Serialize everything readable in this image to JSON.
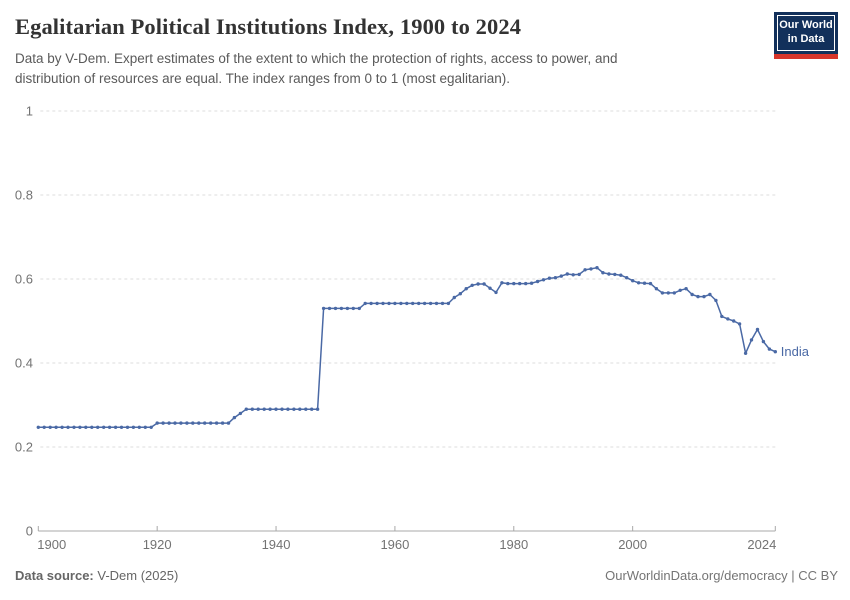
{
  "header": {
    "title": "Egalitarian Political Institutions Index, 1900 to 2024",
    "subtitle_line1": "Data by V-Dem. Expert estimates of the extent to which the protection of rights, access to power, and",
    "subtitle_line2": "distribution of resources are equal. The index ranges from 0 to 1 (most egalitarian)."
  },
  "logo": {
    "line1": "Our World",
    "line2": "in Data",
    "bg_color": "#12305b",
    "accent_color": "#d7352b"
  },
  "chart_data": {
    "type": "line",
    "title": "Egalitarian Political Institutions Index, 1900 to 2024",
    "xlabel": "",
    "ylabel": "",
    "xlim": [
      1900,
      2024
    ],
    "ylim": [
      0,
      1
    ],
    "xticks": [
      1900,
      1920,
      1940,
      1960,
      1980,
      2000,
      2024
    ],
    "yticks": [
      0,
      0.2,
      0.4,
      0.6,
      0.8,
      1
    ],
    "grid": "horizontal-dashed",
    "legend": "end-of-line entity label",
    "colors": {
      "gridline": "#dedede",
      "axis": "#a8a8a8",
      "tick_label": "#737373"
    },
    "series": [
      {
        "name": "India",
        "color": "#4a69a5",
        "years": [
          1900,
          1901,
          1902,
          1903,
          1904,
          1905,
          1906,
          1907,
          1908,
          1909,
          1910,
          1911,
          1912,
          1913,
          1914,
          1915,
          1916,
          1917,
          1918,
          1919,
          1920,
          1921,
          1922,
          1923,
          1924,
          1925,
          1926,
          1927,
          1928,
          1929,
          1930,
          1931,
          1932,
          1933,
          1934,
          1935,
          1936,
          1937,
          1938,
          1939,
          1940,
          1941,
          1942,
          1943,
          1944,
          1945,
          1946,
          1947,
          1948,
          1949,
          1950,
          1951,
          1952,
          1953,
          1954,
          1955,
          1956,
          1957,
          1958,
          1959,
          1960,
          1961,
          1962,
          1963,
          1964,
          1965,
          1966,
          1967,
          1968,
          1969,
          1970,
          1971,
          1972,
          1973,
          1974,
          1975,
          1976,
          1977,
          1978,
          1979,
          1980,
          1981,
          1982,
          1983,
          1984,
          1985,
          1986,
          1987,
          1988,
          1989,
          1990,
          1991,
          1992,
          1993,
          1994,
          1995,
          1996,
          1997,
          1998,
          1999,
          2000,
          2001,
          2002,
          2003,
          2004,
          2005,
          2006,
          2007,
          2008,
          2009,
          2010,
          2011,
          2012,
          2013,
          2014,
          2015,
          2016,
          2017,
          2018,
          2019,
          2020,
          2021,
          2022,
          2023,
          2024
        ],
        "values": [
          0.247,
          0.247,
          0.247,
          0.247,
          0.247,
          0.247,
          0.247,
          0.247,
          0.247,
          0.247,
          0.247,
          0.247,
          0.247,
          0.247,
          0.247,
          0.247,
          0.247,
          0.247,
          0.247,
          0.247,
          0.257,
          0.257,
          0.257,
          0.257,
          0.257,
          0.257,
          0.257,
          0.257,
          0.257,
          0.257,
          0.257,
          0.257,
          0.257,
          0.27,
          0.28,
          0.29,
          0.29,
          0.29,
          0.29,
          0.29,
          0.29,
          0.29,
          0.29,
          0.29,
          0.29,
          0.29,
          0.29,
          0.29,
          0.53,
          0.53,
          0.53,
          0.53,
          0.53,
          0.53,
          0.53,
          0.542,
          0.542,
          0.542,
          0.542,
          0.542,
          0.542,
          0.542,
          0.542,
          0.542,
          0.542,
          0.542,
          0.542,
          0.542,
          0.542,
          0.542,
          0.556,
          0.565,
          0.577,
          0.585,
          0.588,
          0.588,
          0.578,
          0.568,
          0.591,
          0.589,
          0.589,
          0.589,
          0.589,
          0.59,
          0.594,
          0.598,
          0.602,
          0.603,
          0.607,
          0.612,
          0.61,
          0.611,
          0.622,
          0.624,
          0.627,
          0.615,
          0.612,
          0.611,
          0.609,
          0.603,
          0.596,
          0.591,
          0.59,
          0.589,
          0.577,
          0.567,
          0.567,
          0.567,
          0.573,
          0.577,
          0.563,
          0.558,
          0.558,
          0.563,
          0.549,
          0.511,
          0.505,
          0.5,
          0.493,
          0.423,
          0.455,
          0.48,
          0.451,
          0.433,
          0.427
        ]
      }
    ]
  },
  "footer": {
    "source_label": "Data source:",
    "source_value": " V-Dem (2025)",
    "credit": "OurWorldinData.org/democracy | CC BY"
  }
}
